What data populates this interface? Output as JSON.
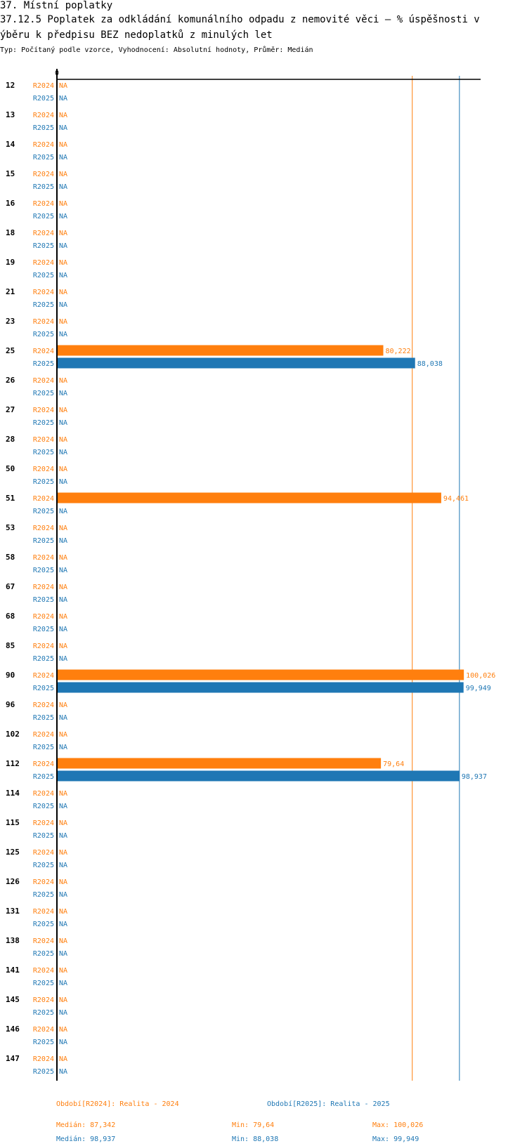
{
  "title_line1": "37. Místní poplatky",
  "title_line2": "37.12.5 Poplatek za odkládání komunálního odpadu z nemovité věci – % úspěšnosti v",
  "title_line3": "ýběru k předpisu BEZ nedoplatků z minulých let",
  "subtitle": "Typ: Počítaný podle vzorce, Vyhodnocení: Absolutní hodnoty, Průměr: Medián",
  "colors": {
    "r2024": "#ff7f0e",
    "r2025": "#1f77b4"
  },
  "chart_data": {
    "type": "bar",
    "orientation": "horizontal",
    "x_min": 0,
    "x_tick_labels": [
      "0"
    ],
    "na_label": "NA",
    "categories": [
      "12",
      "13",
      "14",
      "15",
      "16",
      "18",
      "19",
      "21",
      "23",
      "25",
      "26",
      "27",
      "28",
      "50",
      "51",
      "53",
      "58",
      "67",
      "68",
      "85",
      "90",
      "96",
      "102",
      "112",
      "114",
      "115",
      "125",
      "126",
      "131",
      "138",
      "141",
      "145",
      "146",
      "147"
    ],
    "series": [
      {
        "name": "R2024",
        "color": "#ff7f0e",
        "values": [
          null,
          null,
          null,
          null,
          null,
          null,
          null,
          null,
          null,
          80.222,
          null,
          null,
          null,
          null,
          94.461,
          null,
          null,
          null,
          null,
          null,
          100.026,
          null,
          null,
          79.64,
          null,
          null,
          null,
          null,
          null,
          null,
          null,
          null,
          null,
          null
        ],
        "value_labels": [
          "",
          "",
          "",
          "",
          "",
          "",
          "",
          "",
          "",
          "80,222",
          "",
          "",
          "",
          "",
          "94,461",
          "",
          "",
          "",
          "",
          "",
          "100,026",
          "",
          "",
          "79,64",
          "",
          "",
          "",
          "",
          "",
          "",
          "",
          "",
          "",
          ""
        ]
      },
      {
        "name": "R2025",
        "color": "#1f77b4",
        "values": [
          null,
          null,
          null,
          null,
          null,
          null,
          null,
          null,
          null,
          88.038,
          null,
          null,
          null,
          null,
          null,
          null,
          null,
          null,
          null,
          null,
          99.949,
          null,
          null,
          98.937,
          null,
          null,
          null,
          null,
          null,
          null,
          null,
          null,
          null,
          null
        ],
        "value_labels": [
          "",
          "",
          "",
          "",
          "",
          "",
          "",
          "",
          "",
          "88,038",
          "",
          "",
          "",
          "",
          "",
          "",
          "",
          "",
          "",
          "",
          "99,949",
          "",
          "",
          "98,937",
          "",
          "",
          "",
          "",
          "",
          "",
          "",
          "",
          "",
          ""
        ]
      }
    ],
    "reference_lines": [
      {
        "series": "R2024",
        "type": "median",
        "value": 87.342
      },
      {
        "series": "R2025",
        "type": "median",
        "value": 98.937
      }
    ],
    "legend": [
      {
        "label": "Období[R2024]: Realita - 2024",
        "color": "#ff7f0e"
      },
      {
        "label": "Období[R2025]: Realita - 2025",
        "color": "#1f77b4"
      }
    ],
    "stats": [
      {
        "median": "Medián: 87,342",
        "min": "Min: 79,64",
        "max": "Max: 100,026",
        "color": "#ff7f0e"
      },
      {
        "median": "Medián: 98,937",
        "min": "Min: 88,038",
        "max": "Max: 99,949",
        "color": "#1f77b4"
      }
    ]
  }
}
